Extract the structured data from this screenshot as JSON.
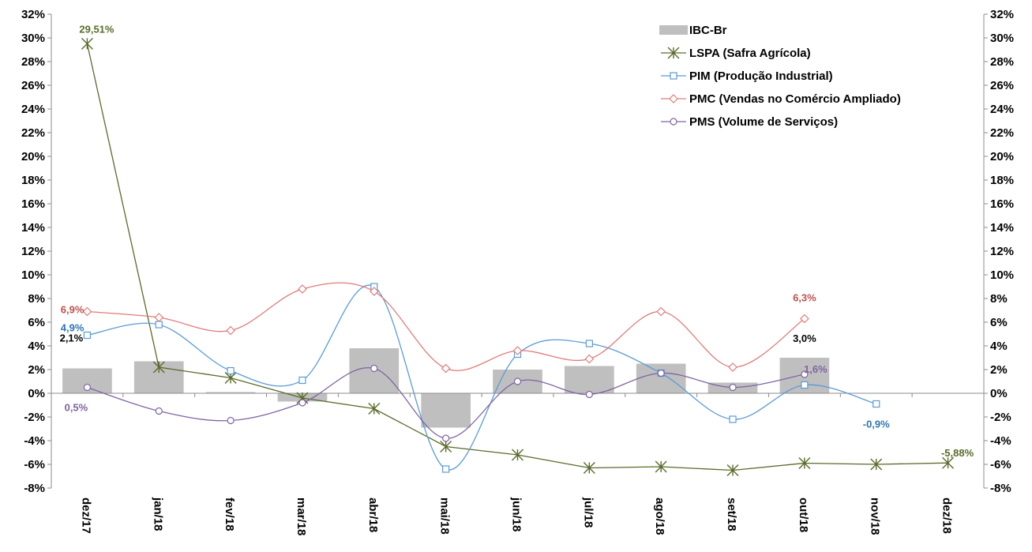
{
  "chart_data": {
    "type": "bar",
    "categories": [
      "dez/17",
      "jan/18",
      "fev/18",
      "mar/18",
      "abr/18",
      "mai/18",
      "jun/18",
      "jul/18",
      "ago/18",
      "set/18",
      "out/18",
      "nov/18",
      "dez/18"
    ],
    "ylim": [
      -8,
      32
    ],
    "yticks": [
      -8,
      -6,
      -4,
      -2,
      0,
      2,
      4,
      6,
      8,
      10,
      12,
      14,
      16,
      18,
      20,
      22,
      24,
      26,
      28,
      30,
      32
    ],
    "ytick_suffix": "%",
    "secondary_y_axis": true,
    "grid": false,
    "legend_position": "top-right",
    "series": [
      {
        "name": "IBC-Br",
        "kind": "bar",
        "color": "#bfbfbf",
        "values": [
          2.1,
          2.7,
          0.1,
          -0.7,
          3.8,
          -2.9,
          2.0,
          2.3,
          2.5,
          0.9,
          3.0,
          null,
          null
        ]
      },
      {
        "name": "LSPA (Safra Agrícola)",
        "kind": "line",
        "marker": "asterisk",
        "smooth": false,
        "color": "#5a6b2a",
        "values": [
          29.51,
          2.2,
          1.3,
          -0.4,
          -1.3,
          -4.5,
          -5.2,
          -6.3,
          -6.2,
          -6.5,
          -5.9,
          -6.0,
          -5.88
        ]
      },
      {
        "name": "PIM (Produção Industrial)",
        "kind": "line",
        "marker": "square",
        "smooth": true,
        "color": "#5b9bd5",
        "values": [
          4.9,
          5.8,
          1.9,
          1.1,
          9.0,
          -6.4,
          3.3,
          4.2,
          1.7,
          -2.2,
          0.7,
          -0.9,
          null
        ]
      },
      {
        "name": "PMC (Vendas no Comércio Ampliado)",
        "kind": "line",
        "marker": "diamond",
        "smooth": true,
        "color": "#e07b7b",
        "values": [
          6.9,
          6.4,
          5.3,
          8.8,
          8.6,
          2.1,
          3.6,
          2.9,
          6.9,
          2.2,
          6.3,
          null,
          null
        ]
      },
      {
        "name": "PMS (Volume de Serviços)",
        "kind": "line",
        "marker": "circle",
        "smooth": true,
        "color": "#8064a2",
        "values": [
          0.5,
          -1.5,
          -2.3,
          -0.8,
          2.1,
          -3.8,
          1.0,
          -0.1,
          1.7,
          0.5,
          1.6,
          null,
          null
        ]
      }
    ],
    "annotations": [
      {
        "text": "29,51%",
        "series": 1,
        "index": 0,
        "color": "#5a6b2a"
      },
      {
        "text": "-5,88%",
        "series": 1,
        "index": 12,
        "color": "#5a6b2a"
      },
      {
        "text": "4,9%",
        "series": 2,
        "index": 0,
        "color": "#2e75b6"
      },
      {
        "text": "-0,9%",
        "series": 2,
        "index": 11,
        "color": "#2e75b6"
      },
      {
        "text": "6,9%",
        "series": 3,
        "index": 0,
        "color": "#c0504d"
      },
      {
        "text": "6,3%",
        "series": 3,
        "index": 10,
        "color": "#c0504d"
      },
      {
        "text": "0,5%",
        "series": 4,
        "index": 0,
        "color": "#8064a2"
      },
      {
        "text": "1,6%",
        "series": 4,
        "index": 10,
        "color": "#8064a2"
      },
      {
        "text": "2,1%",
        "series": 0,
        "index": 0,
        "color": "#000000"
      },
      {
        "text": "3,0%",
        "series": 0,
        "index": 10,
        "color": "#000000"
      }
    ]
  }
}
